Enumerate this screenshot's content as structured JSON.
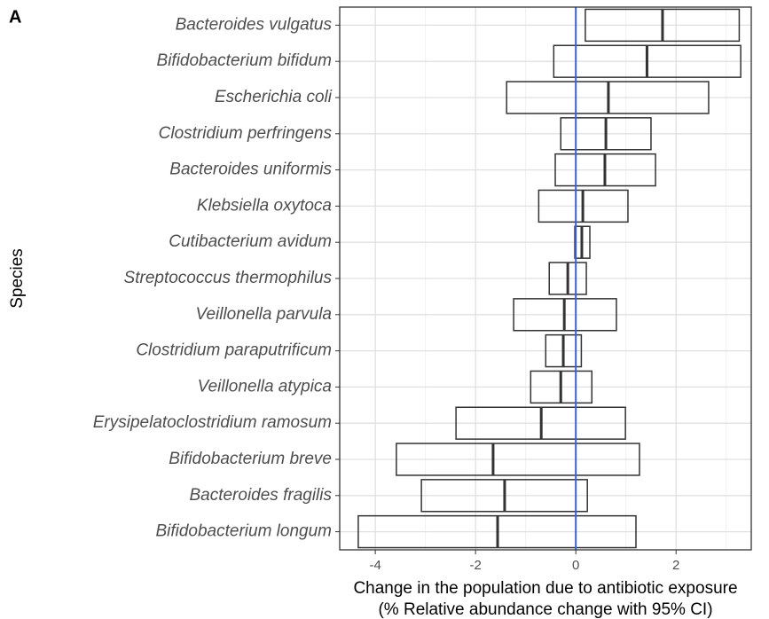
{
  "chart_data": {
    "type": "crossbar",
    "panel_label": "A",
    "xlabel": [
      "Change in the population due to antibiotic exposure",
      "(% Relative abundance change with 95% CI)"
    ],
    "ylabel": "Species",
    "categories": [
      "Bacteroides vulgatus",
      "Bifidobacterium bifidum",
      "Escherichia coli",
      "Clostridium perfringens",
      "Bacteroides uniformis",
      "Klebsiella oxytoca",
      "Cutibacterium avidum",
      "Streptococcus thermophilus",
      "Veillonella parvula",
      "Clostridium paraputrificum",
      "Veillonella atypica",
      "Erysipelatoclostridium ramosum",
      "Bifidobacterium breve",
      "Bacteroides fragilis",
      "Bifidobacterium longum"
    ],
    "values": [
      1.73,
      1.42,
      0.65,
      0.6,
      0.58,
      0.14,
      0.12,
      -0.16,
      -0.23,
      -0.25,
      -0.3,
      -0.69,
      -1.65,
      -1.42,
      -1.56
    ],
    "ci_lower": [
      0.19,
      -0.44,
      -1.38,
      -0.3,
      -0.41,
      -0.74,
      -0.02,
      -0.53,
      -1.24,
      -0.6,
      -0.9,
      -2.39,
      -3.58,
      -3.08,
      -4.34
    ],
    "ci_upper": [
      3.26,
      3.29,
      2.65,
      1.5,
      1.59,
      1.04,
      0.28,
      0.21,
      0.81,
      0.11,
      0.32,
      0.99,
      1.27,
      0.23,
      1.2
    ],
    "color": "#333333",
    "reference_line": 0,
    "reference_color": "#3a5fd9",
    "xlim": [
      -4.71,
      3.5
    ],
    "xticks": [
      -4,
      -2,
      0,
      2
    ],
    "minor_xticks": [
      -3,
      -1,
      1,
      3
    ],
    "grid": true
  }
}
